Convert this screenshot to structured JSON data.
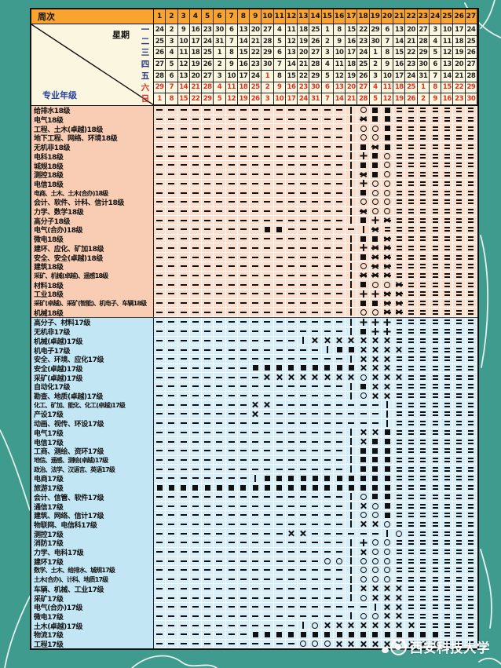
{
  "header": {
    "week_label": "周次",
    "weekday_label": "星期",
    "major_label": "专业年级",
    "weeks": [
      1,
      2,
      3,
      4,
      5,
      6,
      7,
      8,
      9,
      10,
      11,
      12,
      13,
      14,
      15,
      16,
      17,
      18,
      19,
      20,
      21,
      22,
      23,
      24,
      25,
      26,
      27
    ],
    "days": [
      {
        "name": "一",
        "red": false,
        "red_weeks": [],
        "dates": [
          24,
          2,
          9,
          16,
          23,
          30,
          6,
          13,
          20,
          27,
          4,
          11,
          18,
          25,
          1,
          8,
          15,
          22,
          29,
          6,
          13,
          20,
          27,
          3,
          10,
          17,
          24
        ]
      },
      {
        "name": "二",
        "red": false,
        "red_weeks": [],
        "dates": [
          25,
          3,
          10,
          17,
          24,
          31,
          7,
          14,
          21,
          28,
          5,
          12,
          19,
          26,
          2,
          9,
          16,
          23,
          30,
          7,
          14,
          21,
          28,
          4,
          11,
          18,
          25
        ]
      },
      {
        "name": "三",
        "red": false,
        "red_weeks": [],
        "dates": [
          26,
          4,
          11,
          18,
          25,
          1,
          8,
          15,
          22,
          29,
          6,
          13,
          20,
          27,
          3,
          10,
          17,
          24,
          1,
          8,
          15,
          22,
          29,
          5,
          12,
          19,
          26
        ]
      },
      {
        "name": "四",
        "red": false,
        "red_weeks": [],
        "dates": [
          27,
          5,
          12,
          19,
          26,
          2,
          9,
          16,
          23,
          30,
          7,
          14,
          21,
          28,
          4,
          11,
          18,
          25,
          2,
          9,
          16,
          23,
          30,
          6,
          13,
          20,
          27
        ]
      },
      {
        "name": "五",
        "red": false,
        "red_weeks": [
          10
        ],
        "dates": [
          28,
          6,
          13,
          20,
          27,
          3,
          10,
          17,
          24,
          1,
          8,
          15,
          22,
          29,
          5,
          12,
          19,
          26,
          3,
          10,
          17,
          24,
          31,
          7,
          14,
          21,
          28
        ]
      },
      {
        "name": "六",
        "red": true,
        "red_weeks": [],
        "dates": [
          29,
          7,
          14,
          21,
          28,
          4,
          11,
          18,
          25,
          2,
          9,
          16,
          23,
          30,
          6,
          13,
          20,
          27,
          4,
          11,
          18,
          25,
          1,
          8,
          15,
          22,
          29
        ]
      },
      {
        "name": "日",
        "red": true,
        "red_weeks": [],
        "dates": [
          1,
          8,
          15,
          22,
          29,
          5,
          12,
          19,
          26,
          3,
          10,
          17,
          24,
          31,
          7,
          14,
          21,
          28,
          5,
          12,
          19,
          26,
          2,
          9,
          16,
          23,
          30
        ]
      }
    ]
  },
  "symbol_codes": {
    "-": "dash-teaching-week",
    "=": "double-dash-vacation",
    "#": "filled-square-practice",
    "o": "circle-exam",
    "x": "cross-training",
    "+": "plus-sign",
    "*": "reference-mark",
    "|": "vertical-bar-end-of-classes"
  },
  "rows": [
    {
      "label": "给排水18级",
      "grade": "18",
      "pattern": "----------------|o##======="
    },
    {
      "label": "电气18级",
      "grade": "18",
      "pattern": "----------------|*##======="
    },
    {
      "label": "工程、土木(卓越)18级",
      "grade": "18",
      "pattern": "----------------|oo#======="
    },
    {
      "label": "地下工程、网络、环境18级",
      "grade": "18",
      "pattern": "----------------|oo#======="
    },
    {
      "label": "无机非18级",
      "grade": "18",
      "pattern": "----------------|#*#======="
    },
    {
      "label": "电科18级",
      "grade": "18",
      "pattern": "----------------|+#o======="
    },
    {
      "label": "城规18级",
      "grade": "18",
      "pattern": "----------------|##o======="
    },
    {
      "label": "测控18级",
      "grade": "18",
      "pattern": "----------------|*#o======="
    },
    {
      "label": "电信18级",
      "grade": "18",
      "pattern": "----------------|+oo======="
    },
    {
      "label": "电商、土木、土木(合办)18级",
      "grade": "18",
      "pattern": "----------------|#oo======="
    },
    {
      "label": "会计、软件、计科、信计18级",
      "grade": "18",
      "pattern": "----------------|ooo======="
    },
    {
      "label": "力学、数学18级",
      "grade": "18",
      "pattern": "----------------|*oo======="
    },
    {
      "label": "高分子18级",
      "grade": "18",
      "pattern": "----------------|#+*======="
    },
    {
      "label": "电气(合办)18级",
      "grade": "18",
      "pattern": "---------##------|*========"
    },
    {
      "label": "微电18级",
      "grade": "18",
      "pattern": "----------------|##*======="
    },
    {
      "label": "建环、应化、矿加18级",
      "grade": "18",
      "pattern": "----------------|+**======="
    },
    {
      "label": "安全、安全(卓越)18级",
      "grade": "18",
      "pattern": "----------------|#**======="
    },
    {
      "label": "建筑18级",
      "grade": "18",
      "pattern": "----------------|o**======="
    },
    {
      "label": "采矿、机械(卓越)、遥感18级",
      "grade": "18",
      "pattern": "----------------|***======="
    },
    {
      "label": "材料18级",
      "grade": "18",
      "pattern": "----------------|#oo*======"
    },
    {
      "label": "工业18级",
      "grade": "18",
      "pattern": "----------------|++**======"
    },
    {
      "label": "采矿(卓越)、采矿(智能)、机电子、车辆18级",
      "grade": "18",
      "pattern": "----------------|##**======"
    },
    {
      "label": "机械18级",
      "grade": "18",
      "pattern": "----------------|oo**======"
    },
    {
      "label": "高分子、材料17级",
      "grade": "17",
      "pattern": "----------------|+++======="
    },
    {
      "label": "无机非17级",
      "grade": "17",
      "pattern": "----------------|#++======="
    },
    {
      "label": "机械(卓越)17级",
      "grade": "17",
      "pattern": "------------|xxxxxxx======="
    },
    {
      "label": "机电子17级",
      "grade": "17",
      "pattern": "--------------|##xxxx======"
    },
    {
      "label": "安全、环境、应化17级",
      "grade": "17",
      "pattern": "----------------|xxx======="
    },
    {
      "label": "安全(卓越)17级",
      "grade": "17",
      "pattern": "--------#########xxx======="
    },
    {
      "label": "采矿(卓越)17级",
      "grade": "17",
      "pattern": "---------xxxxxxxxoxxx======"
    },
    {
      "label": "自动化17级",
      "grade": "17",
      "pattern": "----------------|#xx======="
    },
    {
      "label": "勘查、地质(卓越)17级",
      "grade": "17",
      "pattern": "----------------|oxx======="
    },
    {
      "label": "化工、矿加、能化、化工(卓越)17级",
      "grade": "17",
      "pattern": "--------xx---------|======="
    },
    {
      "label": "产设17级",
      "grade": "17",
      "pattern": "--------x----------|======="
    },
    {
      "label": "动画、视传、环设17级",
      "grade": "17",
      "pattern": "-------------------|======="
    },
    {
      "label": "电气17级",
      "grade": "17",
      "pattern": "----------------|xx#======="
    },
    {
      "label": "电信17级",
      "grade": "17",
      "pattern": "----------------|x##======="
    },
    {
      "label": "工商、测绘、资环17级",
      "grade": "17",
      "pattern": "----------------|###======="
    },
    {
      "label": "地信、遥感、测绘(卓越)17级",
      "grade": "17",
      "pattern": "----------------|###======="
    },
    {
      "label": "政治、法学、汉语言、英语17级",
      "grade": "17",
      "pattern": "----------------|###======="
    },
    {
      "label": "电商17级",
      "grade": "17",
      "pattern": "--------|###########======="
    },
    {
      "label": "旅游17级",
      "grade": "17",
      "pattern": "####################======="
    },
    {
      "label": "会计、信管、软件17级",
      "grade": "17",
      "pattern": "----------------|o##======="
    },
    {
      "label": "通信17级",
      "grade": "17",
      "pattern": "----------------|xo#======="
    },
    {
      "label": "建筑、网络、信计17级",
      "grade": "17",
      "pattern": "----------------|oo#======="
    },
    {
      "label": "物联网、电信科17级",
      "grade": "17",
      "pattern": "----------------|xxo======="
    },
    {
      "label": "测控17级",
      "grade": "17",
      "pattern": "-----------xx------|o======"
    },
    {
      "label": "消防17级",
      "grade": "17",
      "pattern": "----------------|+oo======="
    },
    {
      "label": "力学、电科17级",
      "grade": "17",
      "pattern": "----------------|xoo======="
    },
    {
      "label": "建环17级",
      "grade": "17",
      "pattern": "--------------oo|ooo======="
    },
    {
      "label": "数学、土木、给排水、城规17级",
      "grade": "17",
      "pattern": "----------------|ooo======="
    },
    {
      "label": "土木(合办)、计科、地质17级",
      "grade": "17",
      "pattern": "----------------|ooo======="
    },
    {
      "label": "车辆、机械、工业17级",
      "grade": "17",
      "pattern": "----------------|xxxx======"
    },
    {
      "label": "采矿17级",
      "grade": "17",
      "pattern": "----------------|oxxx======"
    },
    {
      "label": "电气(合办)17级",
      "grade": "17",
      "pattern": "------------------|xx======"
    },
    {
      "label": "微电17级",
      "grade": "17",
      "pattern": "----------------|ooxx======"
    },
    {
      "label": "土木(卓越)17级",
      "grade": "17",
      "pattern": "------------|oxxxxxxxx====="
    },
    {
      "label": "物流17级",
      "grade": "17",
      "pattern": "--------################==="
    },
    {
      "label": "工程17级",
      "grade": "17",
      "pattern": "------------oooxxxxxxxxx==="
    }
  ],
  "watermark": {
    "text": "西安科技大学"
  },
  "colors": {
    "background_teal": "#3F9B8E",
    "header_orange": "#F8A42F",
    "date_cream": "#FBF6E0",
    "grade18_label": "#F9CDB3",
    "grade18_cell": "#FBDFCE",
    "grade17_label": "#C3E6F4",
    "grade17_cell": "#D7EEF9",
    "holiday_red": "#E0301E",
    "weekday_blue": "#26337F",
    "symbol_black": "#111111"
  }
}
